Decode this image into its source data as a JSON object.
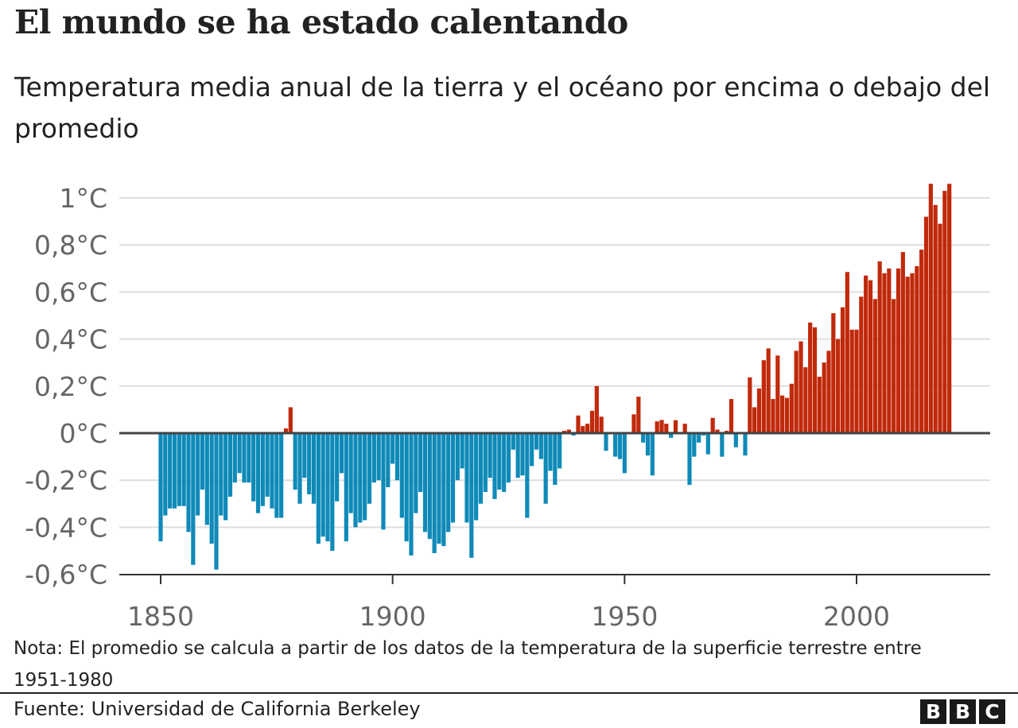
{
  "header": {
    "title": "El mundo se ha estado calentando",
    "subtitle": "Temperatura media anual de la tierra y el océano por encima o debajo del promedio"
  },
  "footer": {
    "note": "Nota: El promedio se calcula a partir de los datos de la temperatura de la superficie terrestre entre 1951-1980",
    "source": "Fuente: Universidad de California Berkeley",
    "logo": [
      "B",
      "B",
      "C"
    ]
  },
  "chart_data": {
    "type": "bar",
    "title": "El mundo se ha estado calentando",
    "subtitle": "Temperatura media anual de la tierra y el océano por encima o debajo del promedio",
    "xlabel": "",
    "ylabel": "",
    "x_start": 1850,
    "x_end": 2020,
    "xlim": [
      1850,
      2020
    ],
    "ylim": [
      -0.6,
      1.0
    ],
    "grid": true,
    "legend": "none",
    "colors": {
      "positive": "#c0290b",
      "negative": "#0f8ab8",
      "zero_line": "#444444",
      "grid": "#dddddd"
    },
    "x_ticks": [
      1850,
      1900,
      1950,
      2000
    ],
    "x_tick_labels": [
      "1850",
      "1900",
      "1950",
      "2000"
    ],
    "y_ticks": [
      1.0,
      0.8,
      0.6,
      0.4,
      0.2,
      0,
      -0.2,
      -0.4,
      -0.6
    ],
    "y_tick_labels": [
      "1°C",
      "0,8°C",
      "0,6°C",
      "0,4°C",
      "0,2°C",
      "0°C",
      "-0,2°C",
      "-0,4°C",
      "-0,6°C"
    ],
    "values": [
      -0.46,
      -0.35,
      -0.32,
      -0.32,
      -0.31,
      -0.31,
      -0.42,
      -0.56,
      -0.35,
      -0.24,
      -0.39,
      -0.47,
      -0.58,
      -0.35,
      -0.37,
      -0.27,
      -0.21,
      -0.17,
      -0.21,
      -0.21,
      -0.29,
      -0.34,
      -0.31,
      -0.27,
      -0.32,
      -0.36,
      -0.36,
      0.02,
      0.11,
      -0.24,
      -0.3,
      -0.19,
      -0.26,
      -0.3,
      -0.47,
      -0.44,
      -0.46,
      -0.5,
      -0.29,
      -0.17,
      -0.46,
      -0.34,
      -0.4,
      -0.38,
      -0.37,
      -0.3,
      -0.21,
      -0.2,
      -0.41,
      -0.23,
      -0.13,
      -0.2,
      -0.36,
      -0.46,
      -0.52,
      -0.34,
      -0.25,
      -0.42,
      -0.45,
      -0.51,
      -0.47,
      -0.48,
      -0.42,
      -0.38,
      -0.2,
      -0.15,
      -0.38,
      -0.53,
      -0.37,
      -0.3,
      -0.25,
      -0.19,
      -0.28,
      -0.24,
      -0.25,
      -0.21,
      -0.07,
      -0.19,
      -0.18,
      -0.36,
      -0.14,
      -0.07,
      -0.11,
      -0.3,
      -0.16,
      -0.22,
      -0.15,
      0.01,
      0.015,
      -0.01,
      0.075,
      0.03,
      0.04,
      0.095,
      0.2,
      0.07,
      -0.075,
      0.0,
      -0.1,
      -0.11,
      -0.17,
      0.0,
      0.08,
      0.155,
      -0.04,
      -0.095,
      -0.18,
      0.05,
      0.056,
      0.04,
      -0.02,
      0.055,
      0.0,
      0.04,
      -0.22,
      -0.1,
      -0.04,
      -0.01,
      -0.09,
      0.065,
      0.015,
      -0.1,
      0.01,
      0.145,
      -0.06,
      0.0,
      -0.095,
      0.237,
      0.11,
      0.19,
      0.31,
      0.36,
      0.145,
      0.33,
      0.16,
      0.15,
      0.21,
      0.35,
      0.39,
      0.28,
      0.47,
      0.45,
      0.24,
      0.3,
      0.35,
      0.51,
      0.4,
      0.535,
      0.685,
      0.44,
      0.44,
      0.58,
      0.67,
      0.65,
      0.57,
      0.73,
      0.68,
      0.7,
      0.57,
      0.7,
      0.77,
      0.665,
      0.68,
      0.71,
      0.78,
      0.92,
      1.06,
      0.97,
      0.89,
      1.03,
      1.06
    ]
  }
}
